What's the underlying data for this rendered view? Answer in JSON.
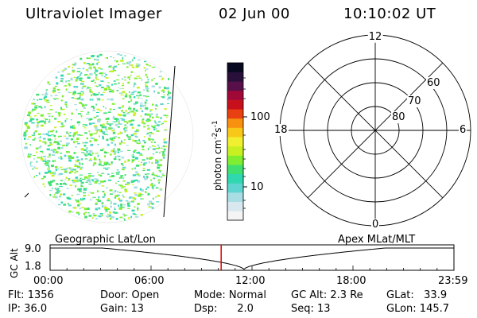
{
  "header": {
    "instrument": "Ultraviolet Imager",
    "date": "02 Jun 00",
    "time": "10:10:02 UT"
  },
  "colorbar": {
    "unit_label": "photon cm",
    "unit_exp1": "-2",
    "unit_mid": "s",
    "unit_exp2": "-1",
    "tick_100": "100",
    "tick_10": "10",
    "colors": [
      "#f4f4f4",
      "#d8e8ee",
      "#a8dde4",
      "#60d4d0",
      "#30d8b0",
      "#40e070",
      "#80ee30",
      "#c8f020",
      "#f0f030",
      "#f8c818",
      "#f89010",
      "#e84010",
      "#c8101c",
      "#a00838",
      "#58104a",
      "#28103a",
      "#080820"
    ]
  },
  "polar_plot": {
    "mlt_top": "12",
    "mlt_bottom": "0",
    "mlt_left": "18",
    "mlt_right": "6",
    "lat_60": "60",
    "lat_70": "70",
    "lat_80": "80"
  },
  "timeline": {
    "left_title": "Geographic Lat/Lon",
    "right_title": "Apex MLat/MLT",
    "axis_label": "GC Alt",
    "y_top": "9.0",
    "y_bottom": "1.8",
    "x_ticks": [
      "00:00",
      "06:00",
      "12:00",
      "18:00",
      "23:59"
    ],
    "current_time_marker_color": "#e00000",
    "current_time_fraction": 0.4237
  },
  "status": {
    "flt": "Flt: 1356",
    "ip": "IP: 36.0",
    "door": "Door: Open",
    "gain": "Gain: 13",
    "mode": "Mode: Normal",
    "dsp": "Dsp:      2.0",
    "gc_alt": "GC Alt: 2.3 Re",
    "seq": "Seq: 13",
    "glat": "GLat:   33.9",
    "glon": "GLon: 145.7"
  }
}
